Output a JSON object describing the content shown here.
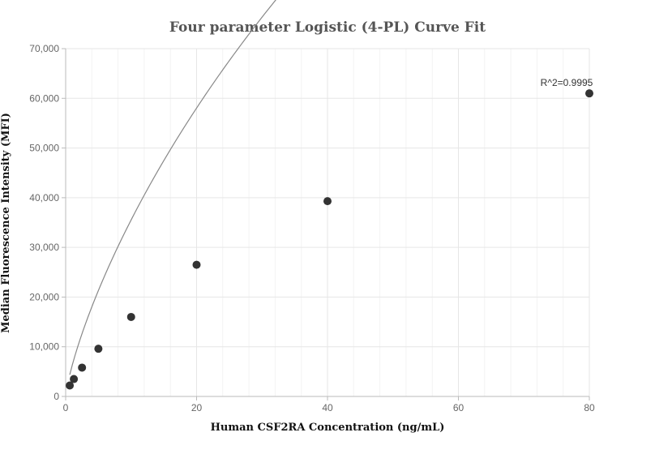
{
  "chart_data": {
    "type": "scatter",
    "title": "Four parameter Logistic (4-PL) Curve Fit",
    "xlabel": "Human CSF2RA Concentration (ng/mL)",
    "ylabel": "Median Fluorescence Intensity (MFI)",
    "xlim": [
      0,
      80
    ],
    "ylim": [
      0,
      70000
    ],
    "x_ticks": [
      0,
      20,
      40,
      60,
      80
    ],
    "y_ticks": [
      0,
      10000,
      20000,
      30000,
      40000,
      50000,
      60000,
      70000
    ],
    "x_tick_labels": [
      "0",
      "20",
      "40",
      "60",
      "80"
    ],
    "y_tick_labels": [
      "0",
      "10,000",
      "20,000",
      "30,000",
      "40,000",
      "50,000",
      "60,000",
      "70,000"
    ],
    "grid": true,
    "annotation": "R^2=0.9995",
    "series": [
      {
        "points": [
          {
            "x": 0.625,
            "y": 2200
          },
          {
            "x": 1.25,
            "y": 3500
          },
          {
            "x": 2.5,
            "y": 5800
          },
          {
            "x": 5,
            "y": 9600
          },
          {
            "x": 10,
            "y": 16000
          },
          {
            "x": 20,
            "y": 26500
          },
          {
            "x": 40,
            "y": 39300
          },
          {
            "x": 80,
            "y": 61000
          }
        ]
      }
    ],
    "fit": {
      "model": "4PL",
      "a": 0,
      "b": 0.78,
      "c": 270,
      "d": 500000
    },
    "colors": {
      "points": "#333333",
      "curve": "#888888"
    }
  }
}
